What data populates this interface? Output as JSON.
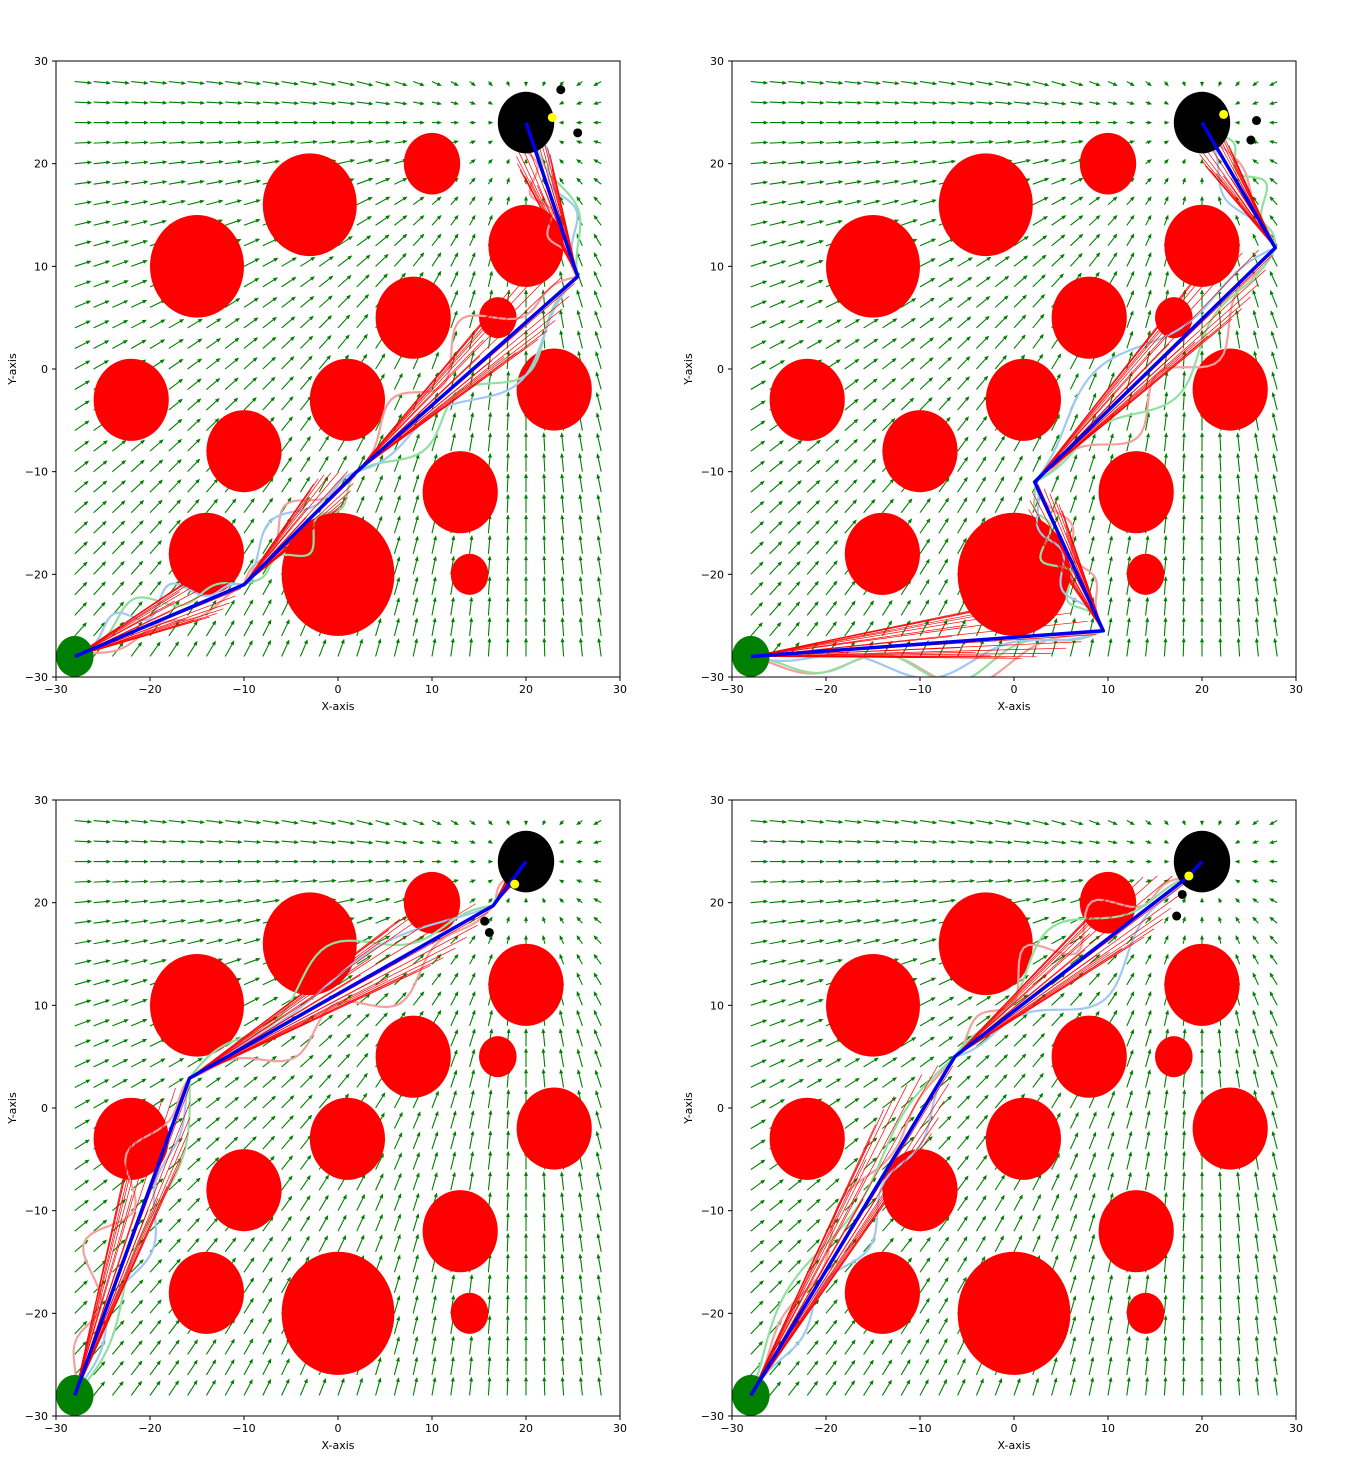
{
  "chart_data": [
    {
      "type": "scatter",
      "xlabel": "X-axis",
      "ylabel": "Y-axis",
      "xlim": [
        -30,
        30
      ],
      "ylim": [
        -30,
        30
      ],
      "xticks": [
        -30,
        -20,
        -10,
        0,
        10,
        20,
        30
      ],
      "yticks": [
        -30,
        -20,
        -10,
        0,
        10,
        20,
        30
      ],
      "start": {
        "x": -28,
        "y": -28,
        "r": 2,
        "color": "#008000"
      },
      "goal": {
        "x": 20,
        "y": 24,
        "r": 3,
        "color": "#000000"
      },
      "path": [
        [
          -28,
          -28
        ],
        [
          -10,
          -21
        ],
        [
          2,
          -10
        ],
        [
          25.5,
          9
        ],
        [
          20,
          24
        ]
      ],
      "markers": [
        {
          "x": 22.8,
          "y": 24.5,
          "color": "#ffff00"
        },
        {
          "x": 23.7,
          "y": 27.2,
          "color": "#000000"
        },
        {
          "x": 25.5,
          "y": 23.0,
          "color": "#000000"
        }
      ]
    },
    {
      "type": "scatter",
      "xlabel": "X-axis",
      "ylabel": "Y-axis",
      "xlim": [
        -30,
        30
      ],
      "ylim": [
        -30,
        30
      ],
      "xticks": [
        -30,
        -20,
        -10,
        0,
        10,
        20,
        30
      ],
      "yticks": [
        -30,
        -20,
        -10,
        0,
        10,
        20,
        30
      ],
      "start": {
        "x": -28,
        "y": -28,
        "r": 2,
        "color": "#008000"
      },
      "goal": {
        "x": 20,
        "y": 24,
        "r": 3,
        "color": "#000000"
      },
      "path": [
        [
          -28,
          -28
        ],
        [
          9.5,
          -25.5
        ],
        [
          2.2,
          -11
        ],
        [
          27.8,
          11.8
        ],
        [
          20,
          24
        ]
      ],
      "markers": [
        {
          "x": 22.3,
          "y": 24.8,
          "color": "#ffff00"
        },
        {
          "x": 25.8,
          "y": 24.2,
          "color": "#000000"
        },
        {
          "x": 25.2,
          "y": 22.3,
          "color": "#000000"
        }
      ]
    },
    {
      "type": "scatter",
      "xlabel": "X-axis",
      "ylabel": "Y-axis",
      "xlim": [
        -30,
        30
      ],
      "ylim": [
        -30,
        30
      ],
      "xticks": [
        -30,
        -20,
        -10,
        0,
        10,
        20,
        30
      ],
      "yticks": [
        -30,
        -20,
        -10,
        0,
        10,
        20,
        30
      ],
      "start": {
        "x": -28,
        "y": -28,
        "r": 2,
        "color": "#008000"
      },
      "goal": {
        "x": 20,
        "y": 24,
        "r": 3,
        "color": "#000000"
      },
      "path": [
        [
          -28,
          -28
        ],
        [
          -15.8,
          2.9
        ],
        [
          16.5,
          19.7
        ],
        [
          20,
          24
        ]
      ],
      "markers": [
        {
          "x": 18.8,
          "y": 21.8,
          "color": "#ffff00"
        },
        {
          "x": 15.6,
          "y": 18.2,
          "color": "#000000"
        },
        {
          "x": 16.1,
          "y": 17.1,
          "color": "#000000"
        }
      ]
    },
    {
      "type": "scatter",
      "xlabel": "X-axis",
      "ylabel": "Y-axis",
      "xlim": [
        -30,
        30
      ],
      "ylim": [
        -30,
        30
      ],
      "xticks": [
        -30,
        -20,
        -10,
        0,
        10,
        20,
        30
      ],
      "yticks": [
        -30,
        -20,
        -10,
        0,
        10,
        20,
        30
      ],
      "start": {
        "x": -28,
        "y": -28,
        "r": 2,
        "color": "#008000"
      },
      "goal": {
        "x": 20,
        "y": 24,
        "r": 3,
        "color": "#000000"
      },
      "path": [
        [
          -28,
          -28
        ],
        [
          -6.3,
          5
        ],
        [
          18.5,
          22.5
        ],
        [
          20,
          24
        ]
      ],
      "markers": [
        {
          "x": 18.6,
          "y": 22.6,
          "color": "#ffff00"
        },
        {
          "x": 17.9,
          "y": 20.8,
          "color": "#000000"
        },
        {
          "x": 17.3,
          "y": 18.7,
          "color": "#000000"
        }
      ]
    }
  ],
  "obstacles": [
    {
      "x": -3,
      "y": 16,
      "r": 5
    },
    {
      "x": -15,
      "y": 10,
      "r": 5
    },
    {
      "x": 10,
      "y": 20,
      "r": 3
    },
    {
      "x": 20,
      "y": 12,
      "r": 4
    },
    {
      "x": 8,
      "y": 5,
      "r": 4
    },
    {
      "x": 17,
      "y": 5,
      "r": 2
    },
    {
      "x": -22,
      "y": -3,
      "r": 4
    },
    {
      "x": 1,
      "y": -3,
      "r": 4
    },
    {
      "x": 23,
      "y": -2,
      "r": 4
    },
    {
      "x": -10,
      "y": -8,
      "r": 4
    },
    {
      "x": 13,
      "y": -12,
      "r": 4
    },
    {
      "x": -14,
      "y": -18,
      "r": 4
    },
    {
      "x": 0,
      "y": -20,
      "r": 6
    },
    {
      "x": 14,
      "y": -20,
      "r": 2
    }
  ],
  "colors": {
    "obstacle": "#ff0000",
    "path": "#0000ee",
    "field_arrow": "#008000",
    "ray": "#ff0000",
    "trail_red": "#f4a0a0",
    "trail_green": "#90e0a0",
    "trail_blue": "#a0c8f0"
  }
}
